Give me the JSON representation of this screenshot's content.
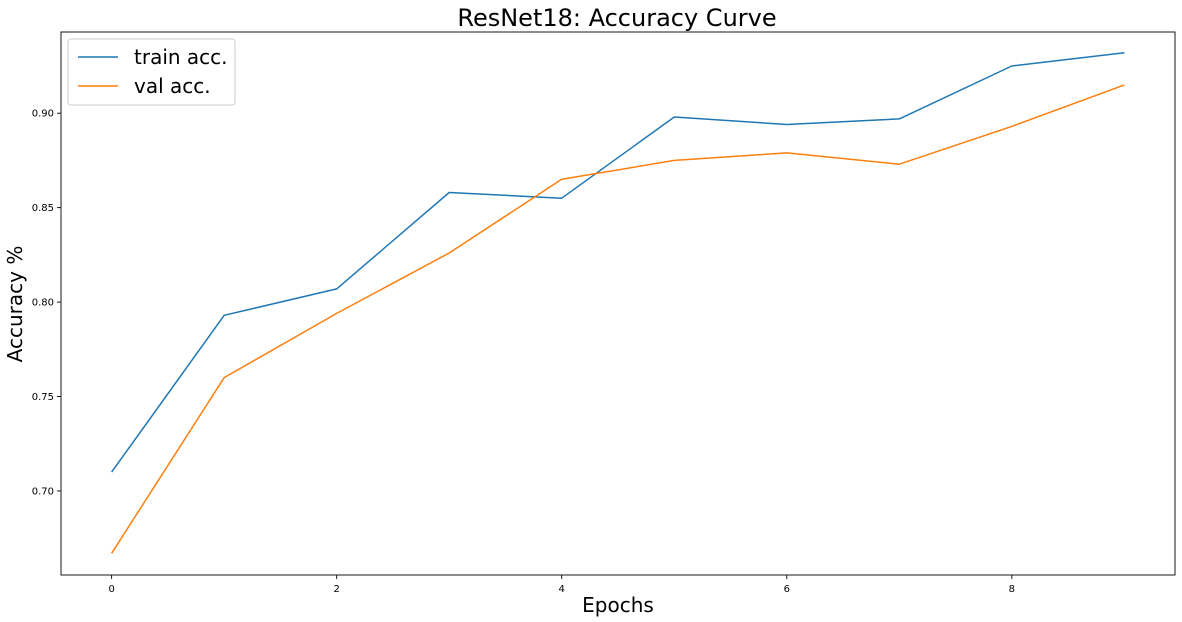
{
  "chart_data": {
    "type": "line",
    "title": "ResNet18: Accuracy Curve",
    "xlabel": "Epochs",
    "ylabel": "Accuracy %",
    "x": [
      0,
      1,
      2,
      3,
      4,
      5,
      6,
      7,
      8,
      9
    ],
    "series": [
      {
        "name": "train acc.",
        "color": "#1f77b4",
        "values": [
          0.71,
          0.793,
          0.807,
          0.858,
          0.855,
          0.898,
          0.894,
          0.897,
          0.925,
          0.932
        ]
      },
      {
        "name": "val acc.",
        "color": "#ff7f0e",
        "values": [
          0.667,
          0.76,
          0.794,
          0.826,
          0.865,
          0.875,
          0.879,
          0.873,
          0.893,
          0.915
        ]
      }
    ],
    "xlim": [
      -0.45,
      9.45
    ],
    "ylim": [
      0.6555,
      0.943
    ],
    "x_ticks": [
      0,
      2,
      4,
      6,
      8
    ],
    "x_tick_labels": [
      "0",
      "2",
      "4",
      "6",
      "8"
    ],
    "y_ticks": [
      0.7,
      0.75,
      0.8,
      0.85,
      0.9
    ],
    "y_tick_labels": [
      "0.70",
      "0.75",
      "0.80",
      "0.85",
      "0.90"
    ],
    "grid": false,
    "legend_position": "upper-left"
  }
}
